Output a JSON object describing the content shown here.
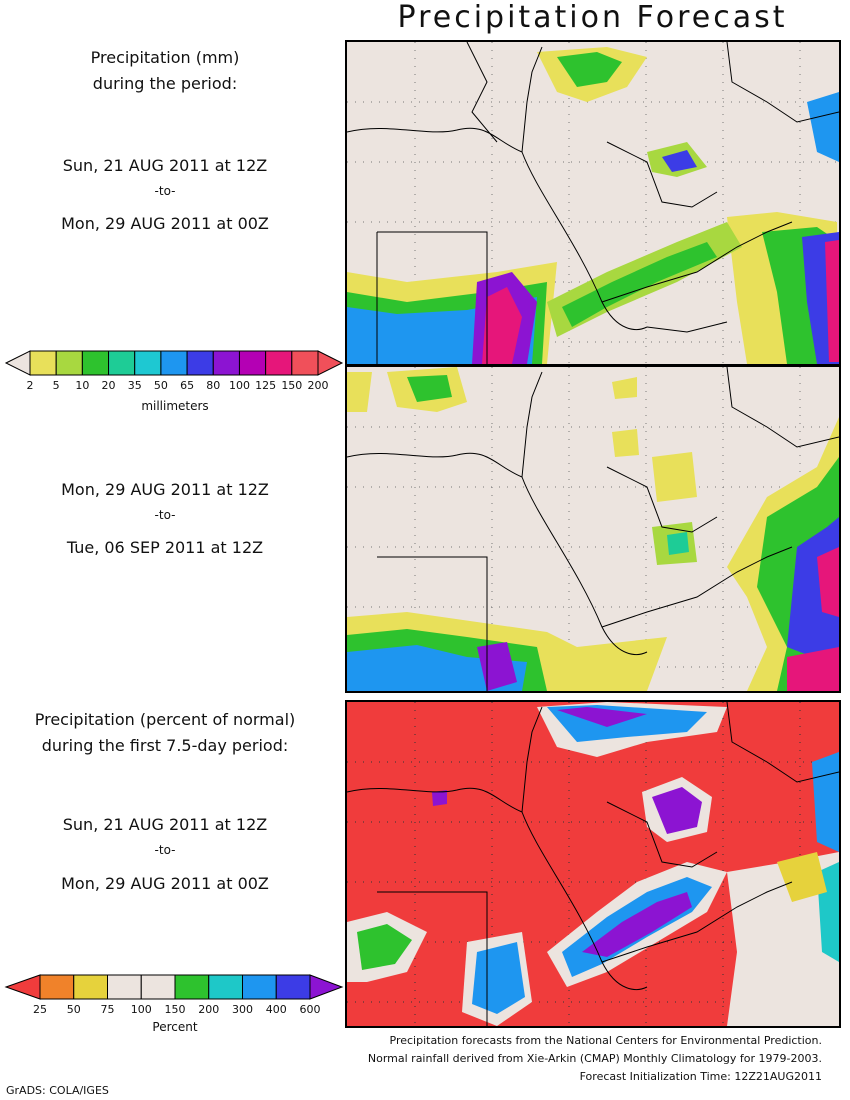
{
  "title": "Precipitation Forecast",
  "panel1": {
    "heading1": "Precipitation (mm)",
    "heading2": "during the period:",
    "start": "Sun, 21 AUG 2011 at 12Z",
    "to": "-to-",
    "end": "Mon, 29 AUG 2011 at 00Z"
  },
  "colorbar_mm": {
    "ticks": [
      "2",
      "5",
      "10",
      "20",
      "35",
      "50",
      "65",
      "80",
      "100",
      "125",
      "150",
      "200"
    ],
    "unit": "millimeters",
    "colors": [
      "#e8e05a",
      "#a8d840",
      "#2ec22e",
      "#1ecc96",
      "#1ec8d2",
      "#1e96f0",
      "#3c3ce6",
      "#8c14d2",
      "#b400b4",
      "#e6167a",
      "#f0505a"
    ]
  },
  "panel2": {
    "start": "Mon, 29 AUG 2011 at 12Z",
    "to": "-to-",
    "end": "Tue, 06 SEP 2011 at 12Z"
  },
  "panel3": {
    "heading1": "Precipitation (percent of normal)",
    "heading2": "during the first 7.5-day period:",
    "start": "Sun, 21 AUG 2011 at 12Z",
    "to": "-to-",
    "end": "Mon, 29 AUG 2011 at 00Z"
  },
  "colorbar_pct": {
    "ticks": [
      "25",
      "50",
      "75",
      "100",
      "150",
      "200",
      "300",
      "400",
      "600"
    ],
    "unit": "Percent",
    "colors": [
      "#f03c3c",
      "#f0822a",
      "#e6d23c",
      "#ece4df",
      "#ece4df",
      "#2ec22e",
      "#1ec8c8",
      "#1e96f0",
      "#3c3ce6",
      "#8c14d2"
    ]
  },
  "footer": {
    "line1": "Precipitation forecasts from the National Centers for Environmental Prediction.",
    "line2": "Normal rainfall derived from Xie-Arkin (CMAP) Monthly Climatology for 1979-2003.",
    "line3": "Forecast Initialization Time: 12Z21AUG2011",
    "credit": "GrADS: COLA/IGES"
  }
}
